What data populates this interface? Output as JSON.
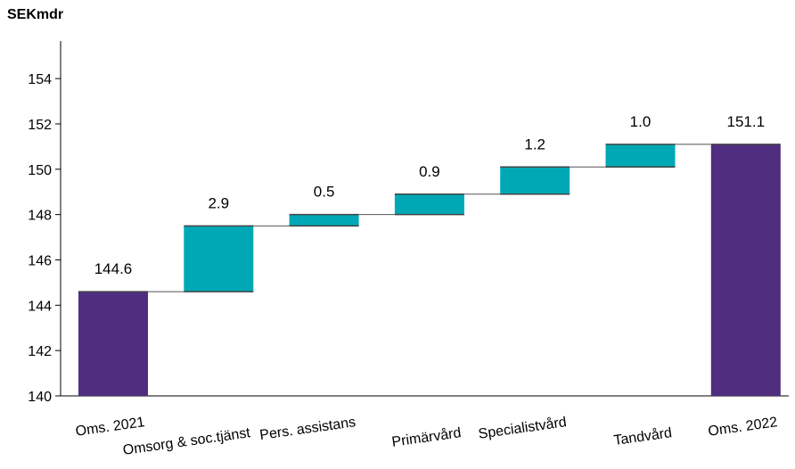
{
  "chart_data": {
    "type": "waterfall",
    "unit_label": "SEKmdr",
    "categories": [
      "Oms. 2021",
      "Omsorg & soc.tjänst",
      "Pers. assistans",
      "Primärvård",
      "Specialistvård",
      "Tandvård",
      "Oms. 2022"
    ],
    "values": [
      144.6,
      2.9,
      0.5,
      0.9,
      1.2,
      1.0,
      151.1
    ],
    "labels": [
      "144.6",
      "2.9",
      "0.5",
      "0.9",
      "1.2",
      "1.0",
      "151.1"
    ],
    "kinds": [
      "total",
      "delta",
      "delta",
      "delta",
      "delta",
      "delta",
      "total"
    ],
    "yticks": [
      "140",
      "142",
      "144",
      "146",
      "148",
      "150",
      "152",
      "154"
    ],
    "ylim": [
      140,
      155.5
    ],
    "colors": {
      "total": "#4f2d7f",
      "delta": "#00a8b5"
    }
  }
}
